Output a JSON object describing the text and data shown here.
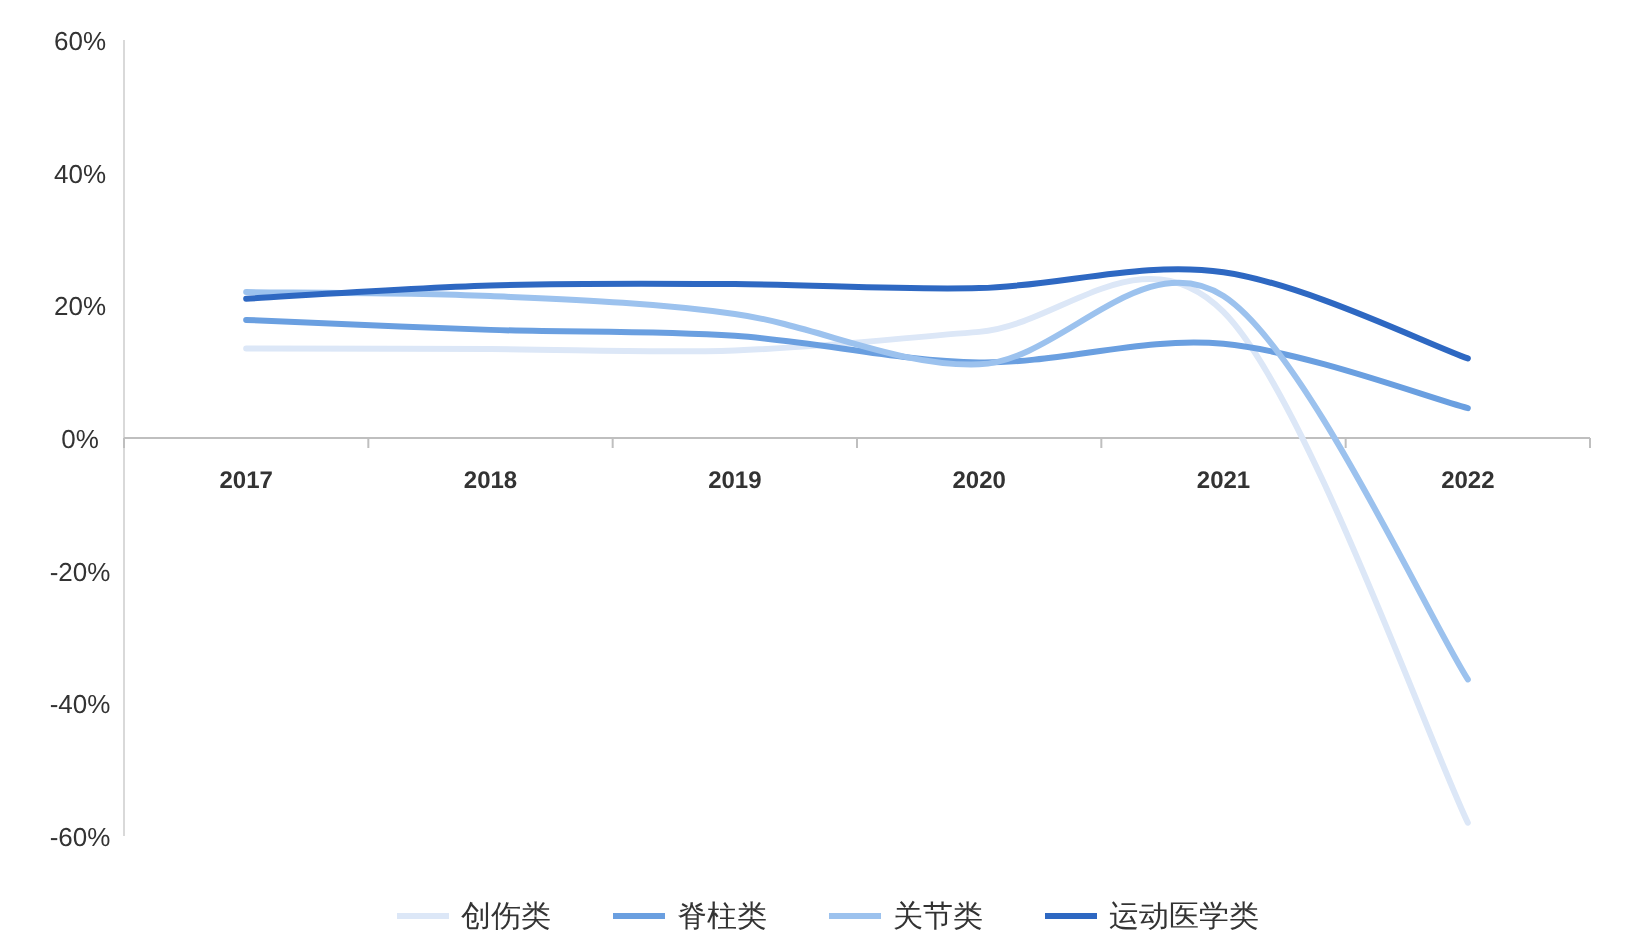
{
  "chart_data": {
    "type": "line",
    "categories": [
      "2017",
      "2018",
      "2019",
      "2020",
      "2021",
      "2022"
    ],
    "series": [
      {
        "name": "创伤类",
        "color": "#dce7f7",
        "values": [
          13.5,
          13.4,
          13.2,
          16,
          19,
          -58
        ]
      },
      {
        "name": "脊柱类",
        "color": "#6a9fe0",
        "values": [
          17.8,
          16.3,
          15.4,
          11.4,
          14.2,
          4.5
        ]
      },
      {
        "name": "关节类",
        "color": "#9cc2ee",
        "values": [
          22,
          21.4,
          18.7,
          11.1,
          21.4,
          -36.4
        ]
      },
      {
        "name": "运动医学类",
        "color": "#2e68c2",
        "values": [
          21,
          23,
          23.2,
          22.6,
          25,
          12
        ]
      }
    ],
    "ylim": [
      -60,
      60
    ],
    "yticks": [
      {
        "value": -60,
        "label": "-60%"
      },
      {
        "value": -40,
        "label": "-40%"
      },
      {
        "value": -20,
        "label": "-20%"
      },
      {
        "value": 0,
        "label": "0%"
      },
      {
        "value": 20,
        "label": "20%"
      },
      {
        "value": 40,
        "label": "40%"
      },
      {
        "value": 60,
        "label": "60%"
      }
    ],
    "legend": "bottom",
    "marker": "none"
  }
}
